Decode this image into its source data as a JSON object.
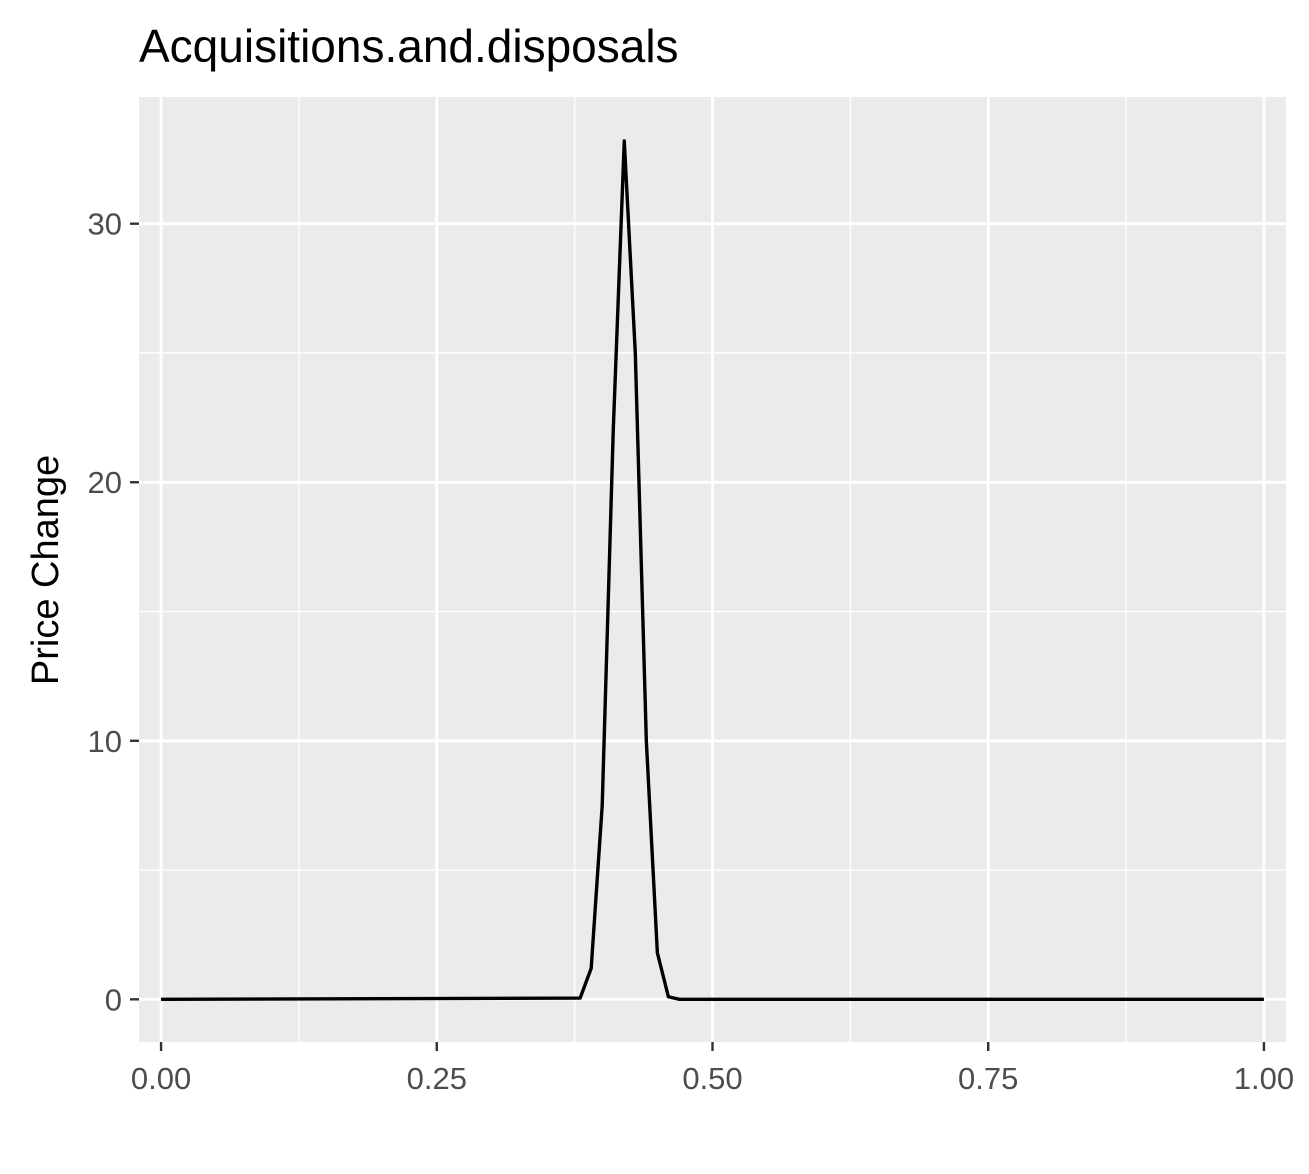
{
  "chart_data": {
    "type": "line",
    "title": "Acquisitions.and.disposals",
    "xlabel": "",
    "ylabel": "Price Change",
    "xlim": [
      -0.02,
      1.02
    ],
    "ylim": [
      -1.65,
      34.9
    ],
    "x_ticks": [
      0.0,
      0.25,
      0.5,
      0.75,
      1.0
    ],
    "x_tick_labels": [
      "0.00",
      "0.25",
      "0.50",
      "0.75",
      "1.00"
    ],
    "y_ticks": [
      0,
      10,
      20,
      30
    ],
    "y_tick_labels": [
      "0",
      "10",
      "20",
      "30"
    ],
    "grid": true,
    "panel_background": "#ebebeb",
    "line_color": "#000000",
    "series": [
      {
        "x": [
          0.0,
          0.38,
          0.39,
          0.4,
          0.41,
          0.42,
          0.43,
          0.44,
          0.45,
          0.46,
          0.47,
          1.0
        ],
        "y": [
          0,
          0.05,
          1.2,
          7.5,
          22.0,
          33.2,
          25.0,
          10.0,
          1.8,
          0.1,
          0,
          0
        ]
      }
    ]
  }
}
